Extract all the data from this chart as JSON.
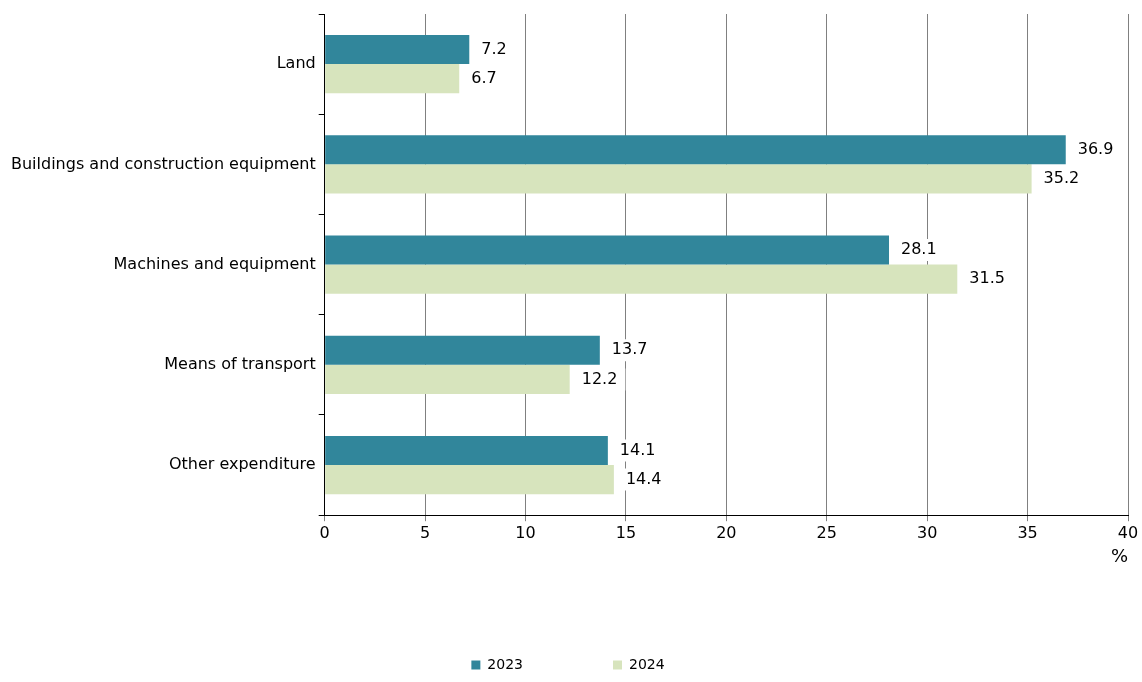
{
  "chart_data": {
    "type": "bar",
    "orientation": "horizontal",
    "categories": [
      "Land",
      "Buildings and construction equipment",
      "Machines and equipment",
      "Means of transport",
      "Other expenditure"
    ],
    "series": [
      {
        "name": "2023",
        "color": "#31869b",
        "values": [
          7.2,
          36.9,
          28.1,
          13.7,
          14.1
        ]
      },
      {
        "name": "2024",
        "color": "#d7e4bd",
        "values": [
          6.7,
          35.2,
          31.5,
          12.2,
          14.4
        ]
      }
    ],
    "xlim": [
      0,
      40
    ],
    "xticks": [
      0,
      5,
      10,
      15,
      20,
      25,
      30,
      35,
      40
    ],
    "xlabel": "%",
    "grid": "x",
    "legend": "bottom",
    "data_labels": true
  }
}
